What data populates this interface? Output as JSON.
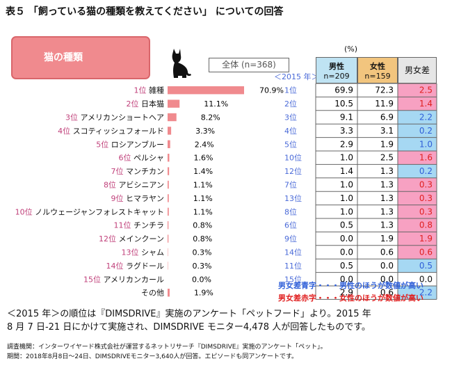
{
  "title": "表５ 「飼っている猫の種類を教えてください」 についての回答",
  "category_label": "猫の種類",
  "total_label": "全体 (n=368)",
  "unit": "(%)",
  "year_label": "＜2015 年＞",
  "headers": {
    "male": "男性",
    "male_n": "n=209",
    "female": "女性",
    "female_n": "n=159",
    "diff": "男女差"
  },
  "colors": {
    "bar": "#f08a8e",
    "rank2021": "#c0407a",
    "rank2015": "#4a6ad8",
    "male_hdr": "#bfe3f3",
    "female_hdr": "#f2c57e",
    "diff_hdr": "#e6e6e6",
    "pink": "#f7a1c2",
    "blue": "#a6d8f3"
  },
  "chart_data": {
    "type": "bar",
    "categories": [
      "1位 雑種",
      "2位 日本猫",
      "3位 アメリカンショートヘア",
      "4位 スコティッシュフォールド",
      "5位 ロシアンブルー",
      "6位 ペルシャ",
      "7位 マンチカン",
      "8位 アビシニアン",
      "9位 ヒマラヤン",
      "10位 ノルウェージャンフォレストキャット",
      "11位 チンチラ",
      "12位 メインクーン",
      "13位 シャム",
      "14位 ラグドール",
      "15位 アメリカンカール",
      "その他"
    ],
    "ranks": [
      "1位",
      "2位",
      "3位",
      "4位",
      "5位",
      "6位",
      "7位",
      "8位",
      "9位",
      "10位",
      "11位",
      "12位",
      "13位",
      "14位",
      "15位",
      ""
    ],
    "names": [
      "雑種",
      "日本猫",
      "アメリカンショートヘア",
      "スコティッシュフォールド",
      "ロシアンブルー",
      "ペルシャ",
      "マンチカン",
      "アビシニアン",
      "ヒマラヤン",
      "ノルウェージャンフォレストキャット",
      "チンチラ",
      "メインクーン",
      "シャム",
      "ラグドール",
      "アメリカンカール",
      "その他"
    ],
    "values": [
      70.9,
      11.1,
      8.2,
      3.3,
      2.4,
      1.6,
      1.4,
      1.1,
      1.1,
      1.1,
      0.8,
      0.8,
      0.3,
      0.3,
      0.0,
      1.9
    ],
    "value_labels": [
      "70.9%",
      "11.1%",
      "8.2%",
      "3.3%",
      "2.4%",
      "1.6%",
      "1.4%",
      "1.1%",
      "1.1%",
      "1.1%",
      "0.8%",
      "0.8%",
      "0.3%",
      "0.3%",
      "0.0%",
      "1.9%"
    ],
    "rank_2015": [
      "1位",
      "2位",
      "3位",
      "4位",
      "5位",
      "10位",
      "12位",
      "7位",
      "13位",
      "8位",
      "6位",
      "9位",
      "14位",
      "11位",
      "15位",
      ""
    ],
    "male": [
      "69.9",
      "10.5",
      "9.1",
      "3.3",
      "2.9",
      "1.0",
      "1.4",
      "1.0",
      "1.0",
      "1.0",
      "0.5",
      "0.0",
      "0.0",
      "0.5",
      "0.0",
      "2.9"
    ],
    "female": [
      "72.3",
      "11.9",
      "6.9",
      "3.1",
      "1.9",
      "2.5",
      "1.3",
      "1.3",
      "1.3",
      "1.3",
      "1.3",
      "1.9",
      "0.6",
      "0.0",
      "0.0",
      "0.6"
    ],
    "diff": [
      "2.5",
      "1.4",
      "2.2",
      "0.2",
      "1.0",
      "1.6",
      "0.2",
      "0.3",
      "0.3",
      "0.3",
      "0.8",
      "1.9",
      "0.6",
      "0.5",
      "0.0",
      "2.2"
    ],
    "diff_color": [
      "red",
      "red",
      "blue",
      "blue",
      "blue",
      "red",
      "blue",
      "red",
      "red",
      "red",
      "red",
      "red",
      "red",
      "blue",
      "none",
      "blue"
    ]
  },
  "notes": {
    "blue": "男女差青字・・・男性のほうが数値が高い",
    "red": "男女差赤字・・・女性のほうが数値が高い"
  },
  "footnote_line1": "＜2015 年＞の順位は『DIMSDRIVE』実施のアンケート「ペットフード」より。2015 年",
  "footnote_line2": "8 月 7 日-21 日にかけて実施され、DIMSDRIVE モニター4,478 人が回答したものです。",
  "survey_info": "調査機関：インターワイヤード株式会社が運営するネットリサーチ『DIMSDRIVE』実施のアンケート「ペット」。",
  "period_info": "期間：2018年8月8日〜24日、DIMSDRIVEモニター3,640人が回答。エピソードも同アンケートです。"
}
